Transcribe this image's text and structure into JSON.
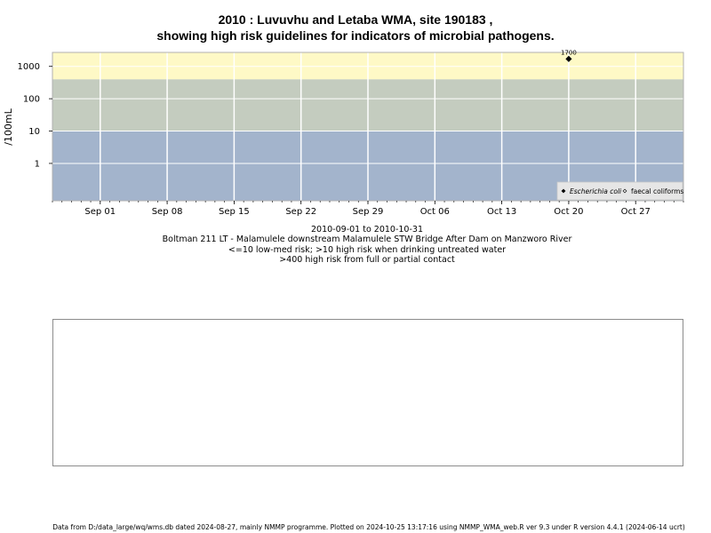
{
  "title": {
    "line1": "2010 : Luvuvhu and Letaba WMA, site 190183 ,",
    "line2": "showing high risk guidelines for indicators of microbial pathogens."
  },
  "chart_data": {
    "type": "scatter",
    "ylabel": "/100mL",
    "y_scale": "log",
    "y_ticks": [
      1,
      10,
      100,
      1000
    ],
    "ylim": [
      0.07,
      2700
    ],
    "xlim": [
      "2010-08-27",
      "2010-11-01"
    ],
    "x_ticks": [
      {
        "date": "2010-09-01",
        "label": "Sep 01"
      },
      {
        "date": "2010-09-08",
        "label": "Sep 08"
      },
      {
        "date": "2010-09-15",
        "label": "Sep 15"
      },
      {
        "date": "2010-09-22",
        "label": "Sep 22"
      },
      {
        "date": "2010-09-29",
        "label": "Sep 29"
      },
      {
        "date": "2010-10-06",
        "label": "Oct 06"
      },
      {
        "date": "2010-10-13",
        "label": "Oct 13"
      },
      {
        "date": "2010-10-20",
        "label": "Oct 20"
      },
      {
        "date": "2010-10-27",
        "label": "Oct 27"
      }
    ],
    "bands": [
      {
        "from": 0.07,
        "to": 10,
        "color": "#a3b4cc"
      },
      {
        "from": 10,
        "to": 400,
        "color": "#c4ccbf"
      },
      {
        "from": 400,
        "to": 2700,
        "color": "#fef9c6"
      }
    ],
    "series": [
      {
        "name": "Escherichia coli",
        "marker": "filled-diamond",
        "points": [
          {
            "x": "2010-10-20",
            "y": 1700,
            "label": "1700"
          }
        ]
      },
      {
        "name": "faecal coliforms",
        "marker": "open-diamond",
        "points": []
      }
    ],
    "legend_position": "bottom-right",
    "grid": true
  },
  "captions": {
    "date_range": "2010-09-01 to 2010-10-31",
    "site": "Boltman 211 LT - Malamulele downstream Malamulele STW Bridge After Dam on Manzworo River",
    "guideline1": "<=10 low-med risk; >10 high risk when drinking untreated water",
    "guideline2": ">400 high risk from full or partial contact"
  },
  "footer": "Data from D:/data_large/wq/wms.db dated 2024-08-27, mainly NMMP programme. Plotted on 2024-10-25 13:17:16 using NMMP_WMA_web.R ver 9.3 under R version 4.4.1 (2024-06-14 ucrt)"
}
